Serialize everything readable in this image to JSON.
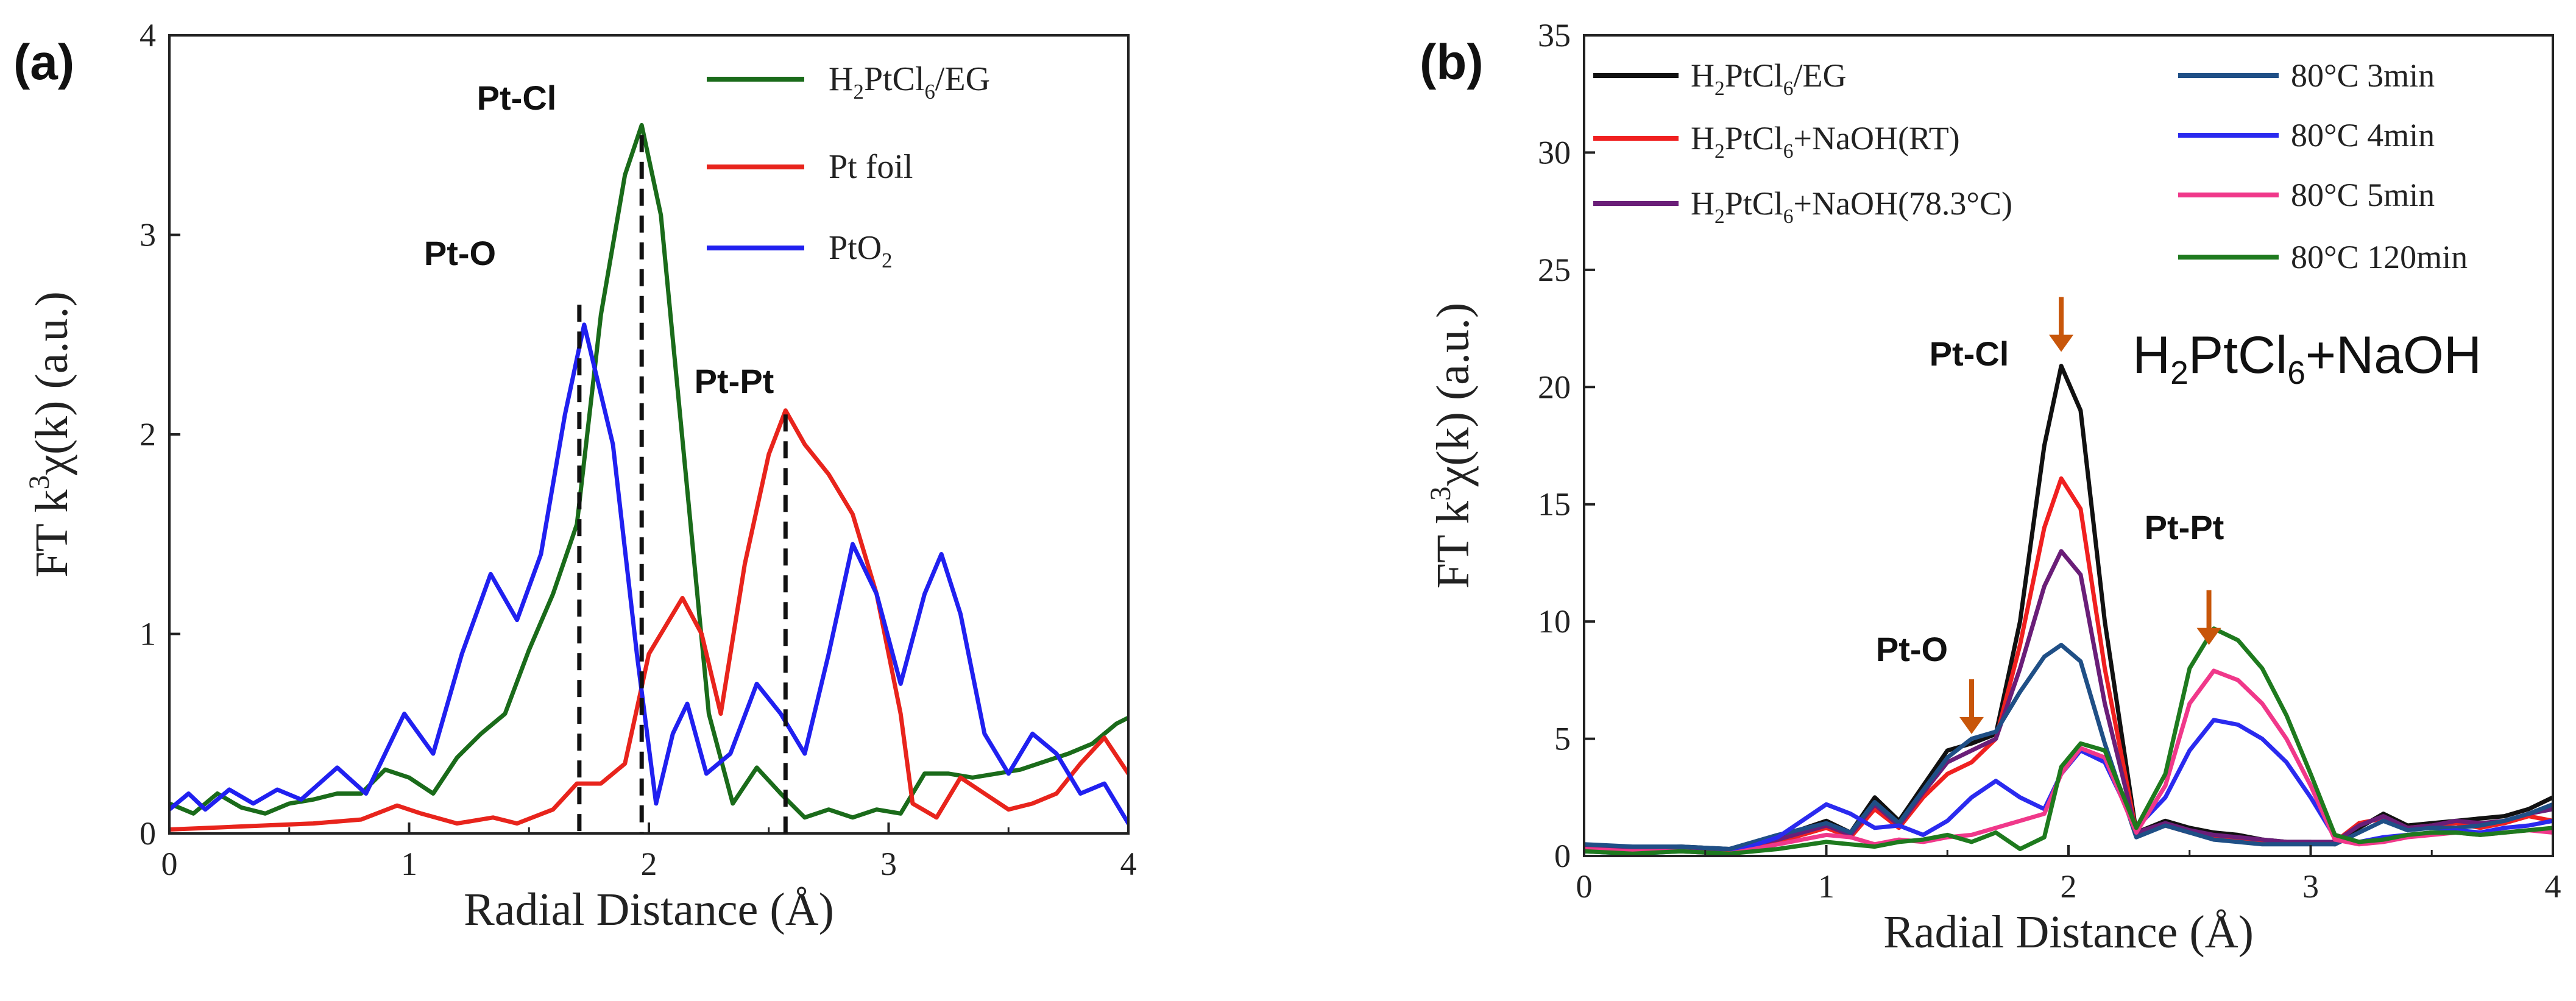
{
  "chart_data": [
    {
      "panel_label": "(a)",
      "type": "line",
      "xlabel": "Radial Distance (Å)",
      "ylabel": "FT k³χ(k) (a.u.)",
      "ylabel_parts": {
        "pre": "FT k",
        "sup": "3",
        "post": "χ(k) (a.u.)"
      },
      "xlim": [
        0,
        4
      ],
      "ylim": [
        0,
        4
      ],
      "xticks": [
        "0",
        "1",
        "2",
        "3",
        "4"
      ],
      "yticks": [
        "0",
        "1",
        "2",
        "3",
        "4"
      ],
      "legend": [
        {
          "name": "H2PtCl6/EG",
          "parts": [
            "H",
            "2",
            "PtCl",
            "6",
            "/EG"
          ],
          "color": "#1a6b1a"
        },
        {
          "name": "Pt foil",
          "parts": [
            "Pt foil"
          ],
          "color": "#e8241c"
        },
        {
          "name": "PtO2",
          "parts": [
            "PtO",
            "2"
          ],
          "color": "#2020f0"
        }
      ],
      "annotations": [
        {
          "text": "Pt-O",
          "x": 1.71,
          "line_top": 2.65
        },
        {
          "text": "Pt-Cl",
          "x": 1.97,
          "line_top": 3.5
        },
        {
          "text": "Pt-Pt",
          "x": 2.57,
          "line_top": 2.1
        }
      ],
      "series": [
        {
          "name": "H2PtCl6/EG",
          "color": "#1a6b1a",
          "x": [
            0,
            0.1,
            0.2,
            0.3,
            0.4,
            0.5,
            0.6,
            0.7,
            0.8,
            0.9,
            1.0,
            1.1,
            1.2,
            1.3,
            1.4,
            1.5,
            1.6,
            1.7,
            1.8,
            1.9,
            1.97,
            2.05,
            2.15,
            2.25,
            2.35,
            2.45,
            2.55,
            2.65,
            2.75,
            2.85,
            2.95,
            3.05,
            3.15,
            3.25,
            3.35,
            3.45,
            3.55,
            3.65,
            3.75,
            3.85,
            3.95,
            4.0
          ],
          "values": [
            0.15,
            0.1,
            0.2,
            0.13,
            0.1,
            0.15,
            0.17,
            0.2,
            0.2,
            0.32,
            0.28,
            0.2,
            0.38,
            0.5,
            0.6,
            0.92,
            1.2,
            1.55,
            2.6,
            3.3,
            3.55,
            3.1,
            1.85,
            0.6,
            0.15,
            0.33,
            0.2,
            0.08,
            0.12,
            0.08,
            0.12,
            0.1,
            0.3,
            0.3,
            0.28,
            0.3,
            0.32,
            0.36,
            0.4,
            0.45,
            0.55,
            0.58
          ]
        },
        {
          "name": "Pt foil",
          "color": "#e8241c",
          "x": [
            0,
            0.2,
            0.4,
            0.6,
            0.8,
            0.95,
            1.05,
            1.2,
            1.35,
            1.45,
            1.6,
            1.7,
            1.8,
            1.9,
            2.0,
            2.05,
            2.14,
            2.22,
            2.3,
            2.4,
            2.5,
            2.57,
            2.65,
            2.75,
            2.85,
            2.95,
            3.05,
            3.1,
            3.2,
            3.3,
            3.4,
            3.5,
            3.6,
            3.7,
            3.8,
            3.9,
            4.0
          ],
          "values": [
            0.02,
            0.03,
            0.04,
            0.05,
            0.07,
            0.14,
            0.1,
            0.05,
            0.08,
            0.05,
            0.12,
            0.25,
            0.25,
            0.35,
            0.9,
            1.0,
            1.18,
            1.0,
            0.6,
            1.35,
            1.9,
            2.12,
            1.95,
            1.8,
            1.6,
            1.2,
            0.6,
            0.15,
            0.08,
            0.28,
            0.2,
            0.12,
            0.15,
            0.2,
            0.35,
            0.48,
            0.3
          ]
        },
        {
          "name": "PtO2",
          "color": "#2020f0",
          "x": [
            0,
            0.08,
            0.15,
            0.25,
            0.35,
            0.45,
            0.55,
            0.7,
            0.82,
            0.98,
            1.1,
            1.22,
            1.34,
            1.45,
            1.55,
            1.65,
            1.73,
            1.85,
            1.95,
            2.03,
            2.1,
            2.16,
            2.24,
            2.34,
            2.45,
            2.55,
            2.65,
            2.75,
            2.85,
            2.95,
            3.05,
            3.15,
            3.22,
            3.3,
            3.4,
            3.5,
            3.6,
            3.7,
            3.8,
            3.9,
            4.0
          ],
          "values": [
            0.12,
            0.2,
            0.12,
            0.22,
            0.15,
            0.22,
            0.17,
            0.33,
            0.2,
            0.6,
            0.4,
            0.9,
            1.3,
            1.07,
            1.4,
            2.1,
            2.55,
            1.95,
            0.9,
            0.15,
            0.5,
            0.65,
            0.3,
            0.4,
            0.75,
            0.6,
            0.4,
            0.9,
            1.45,
            1.2,
            0.75,
            1.2,
            1.4,
            1.1,
            0.5,
            0.3,
            0.5,
            0.4,
            0.2,
            0.25,
            0.05
          ]
        }
      ]
    },
    {
      "panel_label": "(b)",
      "type": "line",
      "xlabel": "Radial Distance (Å)",
      "ylabel": "FT k³χ(k) (a.u.)",
      "ylabel_parts": {
        "pre": "FT k",
        "sup": "3",
        "post": "χ(k) (a.u.)"
      },
      "xlim": [
        0,
        4
      ],
      "ylim": [
        0,
        35
      ],
      "xticks": [
        "0",
        "1",
        "2",
        "3",
        "4"
      ],
      "yticks": [
        "0",
        "5",
        "10",
        "15",
        "20",
        "25",
        "30",
        "35"
      ],
      "inset_title": "H2PtCl6+NaOH",
      "inset_title_parts": [
        "H",
        "2",
        "PtCl",
        "6",
        "+NaOH"
      ],
      "legend_left": [
        {
          "name": "H2PtCl6/EG",
          "parts": [
            "H",
            "2",
            "PtCl",
            "6",
            "/EG"
          ],
          "color": "#111111"
        },
        {
          "name": "H2PtCl6+NaOH(RT)",
          "parts": [
            "H",
            "2",
            "PtCl",
            "6",
            "+NaOH(RT)"
          ],
          "color": "#f02020"
        },
        {
          "name": "H2PtCl6+NaOH(78.3°C)",
          "parts": [
            "H",
            "2",
            "PtCl",
            "6",
            "+NaOH(78.3°C)"
          ],
          "color": "#6a1e78"
        }
      ],
      "legend_right": [
        {
          "name": "80°C 3min",
          "parts": [
            "80°C 3min"
          ],
          "color": "#1f4f86"
        },
        {
          "name": "80°C 4min",
          "parts": [
            "80°C 4min"
          ],
          "color": "#2a2aef"
        },
        {
          "name": "80°C 5min",
          "parts": [
            "80°C 5min"
          ],
          "color": "#f0388a"
        },
        {
          "name": "80°C 120min",
          "parts": [
            "80°C 120min"
          ],
          "color": "#1e7a1e"
        }
      ],
      "annotations": [
        {
          "text": "Pt-Cl",
          "x": 1.97,
          "arrow_tip": 21.5
        },
        {
          "text": "Pt-O",
          "x": 1.6,
          "arrow_tip": 5.2
        },
        {
          "text": "Pt-Pt",
          "x": 2.58,
          "arrow_tip": 9.0
        }
      ],
      "series": [
        {
          "name": "H2PtCl6/EG",
          "color": "#111111",
          "x": [
            0,
            0.2,
            0.4,
            0.6,
            0.8,
            1.0,
            1.1,
            1.2,
            1.3,
            1.4,
            1.5,
            1.6,
            1.7,
            1.8,
            1.9,
            1.97,
            2.05,
            2.15,
            2.28,
            2.4,
            2.5,
            2.6,
            2.7,
            2.8,
            2.9,
            3.0,
            3.1,
            3.2,
            3.3,
            3.4,
            3.5,
            3.6,
            3.7,
            3.8,
            3.9,
            4.0
          ],
          "values": [
            0.5,
            0.3,
            0.4,
            0.3,
            0.8,
            1.5,
            1.0,
            2.5,
            1.5,
            3.0,
            4.5,
            4.8,
            5.2,
            10.0,
            17.5,
            20.9,
            19.0,
            10.0,
            1.0,
            1.5,
            1.2,
            1.0,
            0.9,
            0.7,
            0.6,
            0.6,
            0.5,
            1.2,
            1.8,
            1.3,
            1.4,
            1.5,
            1.6,
            1.7,
            2.0,
            2.5
          ]
        },
        {
          "name": "H2PtCl6+NaOH(RT)",
          "color": "#f02020",
          "x": [
            0,
            0.2,
            0.4,
            0.6,
            0.8,
            1.0,
            1.1,
            1.2,
            1.3,
            1.4,
            1.5,
            1.6,
            1.7,
            1.8,
            1.9,
            1.97,
            2.05,
            2.15,
            2.28,
            2.4,
            2.5,
            2.6,
            2.7,
            2.8,
            2.9,
            3.0,
            3.1,
            3.2,
            3.3,
            3.4,
            3.5,
            3.6,
            3.7,
            3.8,
            3.9,
            4.0
          ],
          "values": [
            0.3,
            0.2,
            0.3,
            0.2,
            0.6,
            1.2,
            0.8,
            2.0,
            1.2,
            2.5,
            3.5,
            4.0,
            5.0,
            9.0,
            14.0,
            16.1,
            14.8,
            8.0,
            1.0,
            1.3,
            1.0,
            0.8,
            0.7,
            0.6,
            0.6,
            0.5,
            0.6,
            1.4,
            1.6,
            1.2,
            1.3,
            1.4,
            1.2,
            1.4,
            1.7,
            1.5
          ]
        },
        {
          "name": "H2PtCl6+NaOH(78.3°C)",
          "color": "#6a1e78",
          "x": [
            0,
            0.2,
            0.4,
            0.6,
            0.8,
            1.0,
            1.1,
            1.2,
            1.3,
            1.4,
            1.5,
            1.6,
            1.7,
            1.8,
            1.9,
            1.97,
            2.05,
            2.15,
            2.28,
            2.4,
            2.5,
            2.6,
            2.7,
            2.8,
            2.9,
            3.0,
            3.1,
            3.2,
            3.3,
            3.4,
            3.5,
            3.6,
            3.7,
            3.8,
            3.9,
            4.0
          ],
          "values": [
            0.4,
            0.3,
            0.3,
            0.3,
            0.7,
            1.3,
            0.9,
            2.2,
            1.3,
            2.7,
            4.0,
            4.5,
            5.0,
            8.0,
            11.5,
            13.0,
            12.0,
            6.5,
            1.0,
            1.4,
            1.1,
            0.9,
            0.8,
            0.7,
            0.6,
            0.6,
            0.6,
            1.3,
            1.7,
            1.2,
            1.3,
            1.5,
            1.4,
            1.5,
            1.8,
            2.0
          ]
        },
        {
          "name": "80°C 3min",
          "color": "#1f4f86",
          "x": [
            0,
            0.2,
            0.4,
            0.6,
            0.8,
            1.0,
            1.1,
            1.2,
            1.3,
            1.4,
            1.5,
            1.6,
            1.7,
            1.8,
            1.9,
            1.97,
            2.05,
            2.15,
            2.28,
            2.4,
            2.5,
            2.6,
            2.7,
            2.8,
            2.9,
            3.0,
            3.1,
            3.2,
            3.3,
            3.4,
            3.5,
            3.6,
            3.7,
            3.8,
            3.9,
            4.0
          ],
          "values": [
            0.5,
            0.4,
            0.4,
            0.3,
            0.9,
            1.4,
            1.0,
            2.3,
            1.4,
            2.8,
            4.2,
            5.0,
            5.3,
            7.0,
            8.5,
            9.0,
            8.3,
            4.8,
            0.8,
            1.3,
            1.0,
            0.7,
            0.6,
            0.5,
            0.5,
            0.5,
            0.5,
            1.0,
            1.5,
            1.1,
            1.2,
            1.2,
            1.3,
            1.5,
            1.8,
            2.2
          ]
        },
        {
          "name": "80°C 4min",
          "color": "#2a2aef",
          "x": [
            0,
            0.2,
            0.4,
            0.6,
            0.8,
            1.0,
            1.1,
            1.2,
            1.3,
            1.4,
            1.5,
            1.6,
            1.7,
            1.8,
            1.9,
            1.97,
            2.05,
            2.15,
            2.28,
            2.4,
            2.5,
            2.6,
            2.7,
            2.8,
            2.9,
            3.0,
            3.1,
            3.2,
            3.3,
            3.4,
            3.5,
            3.6,
            3.7,
            3.8,
            3.9,
            4.0
          ],
          "values": [
            0.2,
            0.1,
            0.2,
            0.1,
            0.8,
            2.2,
            1.8,
            1.2,
            1.3,
            0.9,
            1.5,
            2.5,
            3.2,
            2.5,
            2.0,
            3.5,
            4.5,
            4.0,
            1.2,
            2.5,
            4.5,
            5.8,
            5.6,
            5.0,
            4.0,
            2.5,
            0.8,
            0.6,
            0.8,
            0.9,
            1.0,
            1.1,
            1.0,
            1.2,
            1.3,
            1.5
          ]
        },
        {
          "name": "80°C 5min",
          "color": "#f0388a",
          "x": [
            0,
            0.2,
            0.4,
            0.6,
            0.8,
            1.0,
            1.1,
            1.2,
            1.3,
            1.4,
            1.5,
            1.6,
            1.7,
            1.8,
            1.9,
            1.97,
            2.05,
            2.15,
            2.28,
            2.4,
            2.5,
            2.6,
            2.7,
            2.8,
            2.9,
            3.0,
            3.1,
            3.2,
            3.3,
            3.4,
            3.5,
            3.6,
            3.7,
            3.8,
            3.9,
            4.0
          ],
          "values": [
            0.3,
            0.2,
            0.2,
            0.1,
            0.5,
            0.9,
            0.8,
            0.5,
            0.7,
            0.6,
            0.8,
            0.9,
            1.2,
            1.5,
            1.8,
            3.5,
            4.6,
            4.2,
            1.0,
            3.0,
            6.5,
            7.9,
            7.5,
            6.5,
            5.0,
            3.0,
            0.7,
            0.5,
            0.6,
            0.8,
            0.9,
            1.0,
            0.9,
            1.0,
            1.1,
            1.0
          ]
        },
        {
          "name": "80°C 120min",
          "color": "#1e7a1e",
          "x": [
            0,
            0.2,
            0.4,
            0.6,
            0.8,
            1.0,
            1.1,
            1.2,
            1.3,
            1.4,
            1.5,
            1.6,
            1.7,
            1.8,
            1.9,
            1.97,
            2.05,
            2.15,
            2.28,
            2.4,
            2.5,
            2.6,
            2.7,
            2.8,
            2.9,
            3.0,
            3.1,
            3.2,
            3.3,
            3.4,
            3.5,
            3.6,
            3.7,
            3.8,
            3.9,
            4.0
          ],
          "values": [
            0.2,
            0.1,
            0.2,
            0.1,
            0.3,
            0.6,
            0.5,
            0.4,
            0.6,
            0.7,
            0.9,
            0.6,
            1.0,
            0.3,
            0.8,
            3.8,
            4.8,
            4.5,
            1.2,
            3.5,
            8.0,
            9.7,
            9.2,
            8.0,
            6.0,
            3.5,
            0.9,
            0.6,
            0.7,
            0.9,
            1.0,
            1.0,
            0.9,
            1.0,
            1.1,
            1.2
          ]
        }
      ]
    }
  ]
}
